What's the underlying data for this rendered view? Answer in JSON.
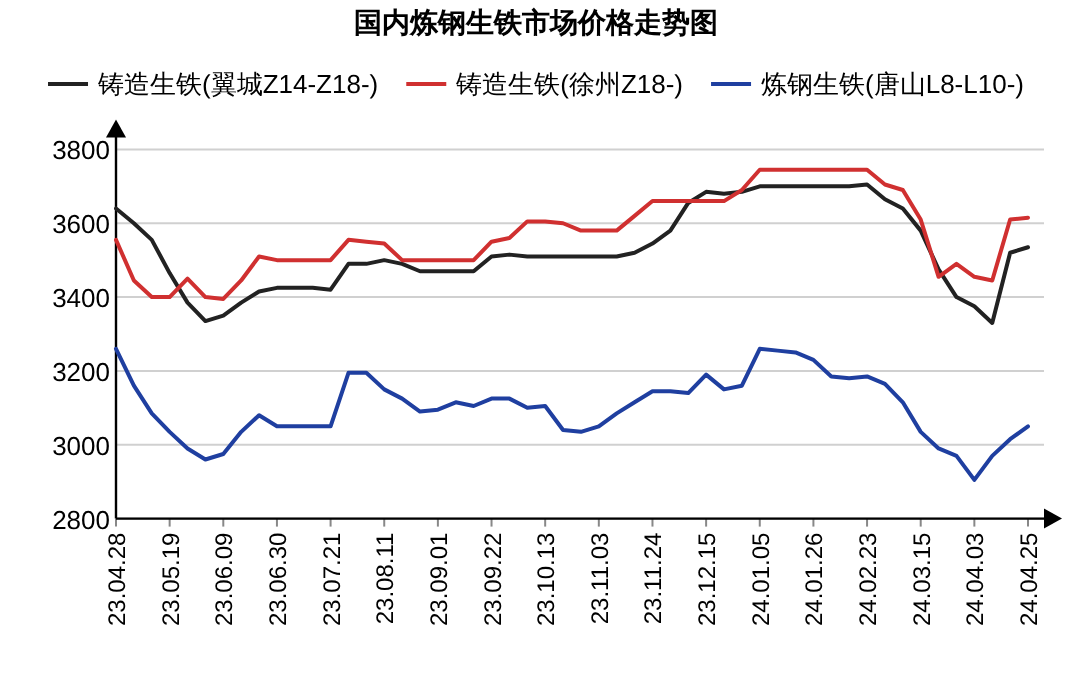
{
  "chart_data": {
    "type": "line",
    "title": "国内炼钢生铁市场价格走势图",
    "categories": [
      "23.04.28",
      null,
      null,
      "23.05.19",
      null,
      null,
      "23.06.09",
      null,
      null,
      "23.06.30",
      null,
      null,
      "23.07.21",
      null,
      null,
      "23.08.11",
      null,
      null,
      "23.09.01",
      null,
      null,
      "23.09.22",
      null,
      null,
      "23.10.13",
      null,
      null,
      "23.11.03",
      null,
      null,
      "23.11.24",
      null,
      null,
      "23.12.15",
      null,
      null,
      "24.01.05",
      null,
      null,
      "24.01.26",
      null,
      null,
      "24.02.23",
      null,
      null,
      "24.03.15",
      null,
      null,
      "24.04.03",
      null,
      null,
      "24.04.25"
    ],
    "series": [
      {
        "name": "铸造生铁(翼城Z14-Z18-)",
        "color": "#222222",
        "values": [
          3640,
          3600,
          3555,
          3465,
          3385,
          3335,
          3350,
          3385,
          3415,
          3425,
          3425,
          3425,
          3420,
          3490,
          3490,
          3500,
          3490,
          3470,
          3470,
          3470,
          3470,
          3510,
          3515,
          3510,
          3510,
          3510,
          3510,
          3510,
          3510,
          3520,
          3545,
          3580,
          3655,
          3685,
          3680,
          3685,
          3700,
          3700,
          3700,
          3700,
          3700,
          3700,
          3705,
          3665,
          3640,
          3580,
          3475,
          3400,
          3375,
          3330,
          3520,
          3535
        ]
      },
      {
        "name": "铸造生铁(徐州Z18-)",
        "color": "#d03030",
        "values": [
          3555,
          3445,
          3400,
          3400,
          3450,
          3400,
          3395,
          3445,
          3510,
          3500,
          3500,
          3500,
          3500,
          3555,
          3550,
          3545,
          3500,
          3500,
          3500,
          3500,
          3500,
          3550,
          3560,
          3605,
          3605,
          3600,
          3580,
          3580,
          3580,
          3620,
          3660,
          3660,
          3660,
          3660,
          3660,
          3690,
          3745,
          3745,
          3745,
          3745,
          3745,
          3745,
          3745,
          3705,
          3690,
          3610,
          3455,
          3490,
          3455,
          3445,
          3610,
          3615
        ]
      },
      {
        "name": "炼钢生铁(唐山L8-L10-)",
        "color": "#1f3fa0",
        "values": [
          3260,
          3160,
          3085,
          3035,
          2990,
          2960,
          2975,
          3035,
          3080,
          3050,
          3050,
          3050,
          3050,
          3195,
          3195,
          3150,
          3125,
          3090,
          3095,
          3115,
          3105,
          3125,
          3125,
          3100,
          3105,
          3040,
          3035,
          3050,
          3085,
          3115,
          3145,
          3145,
          3140,
          3190,
          3150,
          3160,
          3260,
          3255,
          3250,
          3230,
          3185,
          3180,
          3185,
          3165,
          3115,
          3035,
          2990,
          2970,
          2905,
          2970,
          3015,
          3050
        ]
      }
    ],
    "ylim": [
      2800,
      3800
    ],
    "yticks": [
      2800,
      3000,
      3200,
      3400,
      3600,
      3800
    ],
    "grid": "y",
    "legend": "top",
    "line_style": "solid"
  }
}
